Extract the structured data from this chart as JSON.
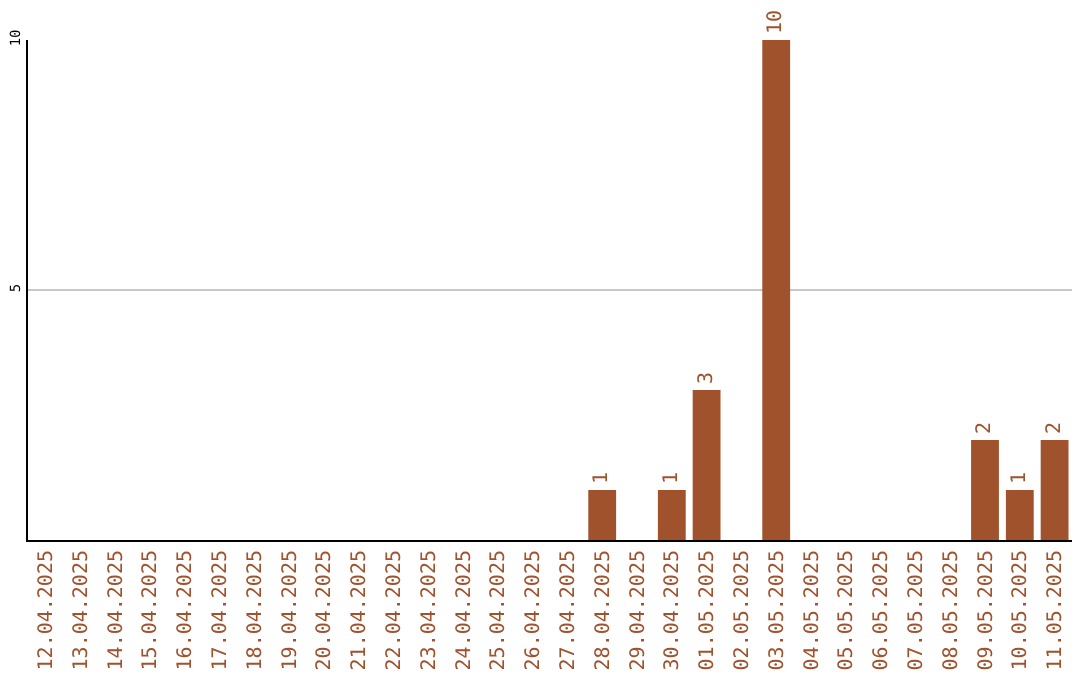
{
  "chart_data": {
    "type": "bar",
    "categories": [
      "12.04.2025",
      "13.04.2025",
      "14.04.2025",
      "15.04.2025",
      "16.04.2025",
      "17.04.2025",
      "18.04.2025",
      "19.04.2025",
      "20.04.2025",
      "21.04.2025",
      "22.04.2025",
      "23.04.2025",
      "24.04.2025",
      "25.04.2025",
      "26.04.2025",
      "27.04.2025",
      "28.04.2025",
      "29.04.2025",
      "30.04.2025",
      "01.05.2025",
      "02.05.2025",
      "03.05.2025",
      "04.05.2025",
      "05.05.2025",
      "06.05.2025",
      "07.05.2025",
      "08.05.2025",
      "09.05.2025",
      "10.05.2025",
      "11.05.2025"
    ],
    "values": [
      0,
      0,
      0,
      0,
      0,
      0,
      0,
      0,
      0,
      0,
      0,
      0,
      0,
      0,
      0,
      0,
      1,
      0,
      1,
      3,
      0,
      10,
      0,
      0,
      0,
      0,
      0,
      2,
      1,
      2
    ],
    "value_labels": [
      null,
      null,
      null,
      null,
      null,
      null,
      null,
      null,
      null,
      null,
      null,
      null,
      null,
      null,
      null,
      null,
      "1",
      null,
      "1",
      "3",
      null,
      "10",
      null,
      null,
      null,
      null,
      null,
      "2",
      "1",
      "2"
    ],
    "color": "#a0522d",
    "ylim": [
      0,
      10
    ],
    "yticks": [
      5,
      10
    ],
    "grid": "y",
    "legend": false
  }
}
